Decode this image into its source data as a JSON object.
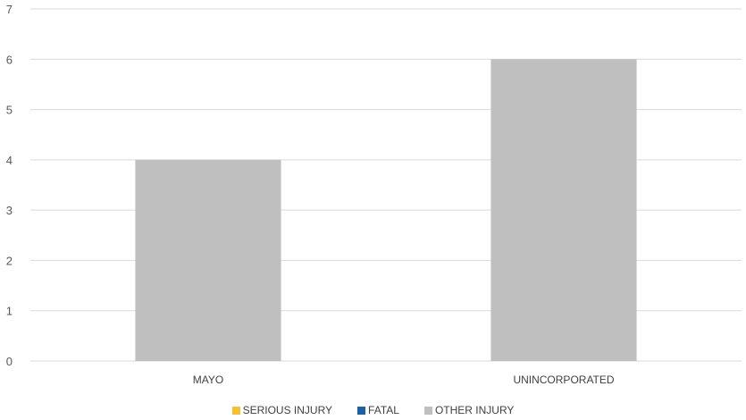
{
  "chart_data": {
    "type": "bar",
    "categories": [
      "MAYO",
      "UNINCORPORATED"
    ],
    "series": [
      {
        "name": "SERIOUS INJURY",
        "color": "#f2c234",
        "values": [
          0,
          0
        ]
      },
      {
        "name": "FATAL",
        "color": "#1f5fa6",
        "values": [
          0,
          0
        ]
      },
      {
        "name": "OTHER INJURY",
        "color": "#bfbfbf",
        "values": [
          4,
          6
        ]
      }
    ],
    "title": "",
    "xlabel": "",
    "ylabel": "",
    "ylim": [
      0,
      7
    ],
    "yticks": [
      "0",
      "1",
      "2",
      "3",
      "4",
      "5",
      "6",
      "7"
    ],
    "grid": true,
    "legend": "bottom"
  }
}
